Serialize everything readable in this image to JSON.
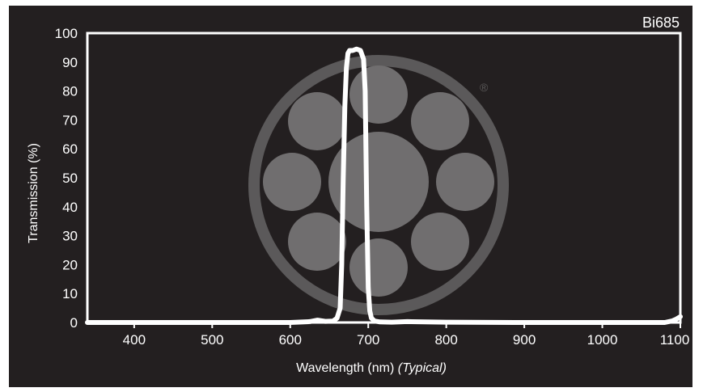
{
  "chart_data": {
    "type": "line",
    "title": "Bi685",
    "xlabel": "Wavelength (nm)",
    "xlabel_note": "(Typical)",
    "ylabel": "Transmission (%)",
    "xlim": [
      340,
      1100
    ],
    "ylim": [
      0,
      100
    ],
    "xticks": [
      400,
      500,
      600,
      700,
      800,
      900,
      1000,
      1100
    ],
    "yticks": [
      0,
      10,
      20,
      30,
      40,
      50,
      60,
      70,
      80,
      90,
      100
    ],
    "grid": false,
    "series": [
      {
        "color": "#ffffff",
        "x": [
          340,
          400,
          500,
          600,
          625,
          635,
          645,
          655,
          660,
          664,
          666,
          668,
          670,
          672,
          674,
          676,
          680,
          685,
          690,
          694,
          696,
          698,
          700,
          702,
          704,
          708,
          715,
          730,
          750,
          800,
          900,
          1000,
          1080,
          1090,
          1095,
          1100
        ],
        "y": [
          0,
          0,
          0,
          0,
          0.3,
          0.8,
          0.4,
          0.5,
          1.5,
          5,
          20,
          50,
          75,
          88,
          93,
          94,
          94,
          94.5,
          94,
          91,
          80,
          40,
          12,
          4,
          1.5,
          0.5,
          0.2,
          0.1,
          0.3,
          0.1,
          0,
          0,
          0,
          0.6,
          1.2,
          2
        ]
      }
    ]
  },
  "watermark": {
    "mark": "®"
  },
  "colors": {
    "background": "#231f20",
    "line": "#ffffff",
    "watermark": "#8a8a8a"
  }
}
